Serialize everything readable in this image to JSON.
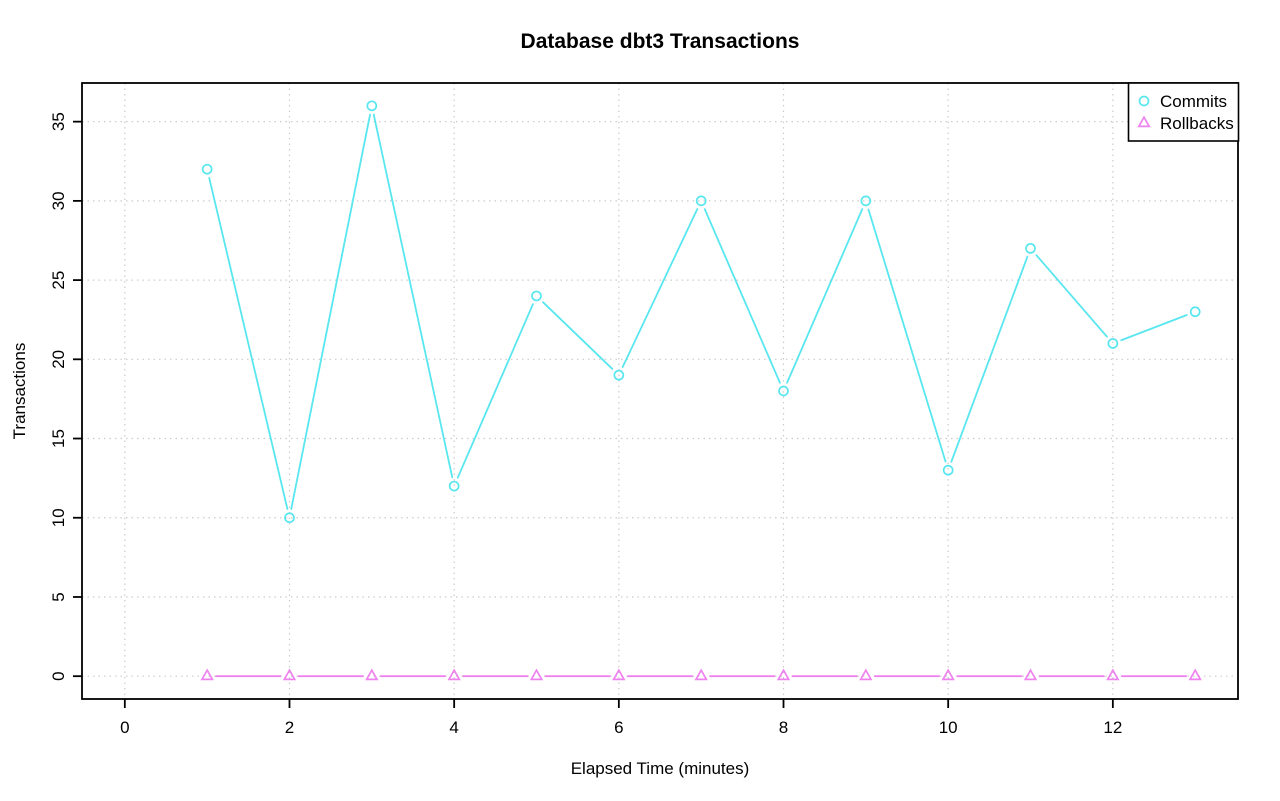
{
  "chart_data": {
    "type": "line",
    "title": "Database dbt3 Transactions",
    "xlabel": "Elapsed Time (minutes)",
    "ylabel": "Transactions",
    "x": [
      1,
      2,
      3,
      4,
      5,
      6,
      7,
      8,
      9,
      10,
      11,
      12,
      13
    ],
    "series": [
      {
        "name": "Commits",
        "marker": "circle",
        "color": "#58E6EF",
        "values": [
          32,
          10,
          36,
          12,
          24,
          19,
          30,
          18,
          30,
          13,
          27,
          21,
          23
        ]
      },
      {
        "name": "Rollbacks",
        "marker": "triangle",
        "color": "#EE82EE",
        "values": [
          0,
          0,
          0,
          0,
          0,
          0,
          0,
          0,
          0,
          0,
          0,
          0,
          0
        ]
      }
    ],
    "xticks": [
      0,
      2,
      4,
      6,
      8,
      10,
      12
    ],
    "yticks": [
      0,
      5,
      10,
      15,
      20,
      25,
      30,
      35
    ],
    "xlim": [
      -0.52,
      13.52
    ],
    "ylim": [
      -1.44,
      37.44
    ],
    "grid": true,
    "grid_color": "#CCCCCC",
    "frame_color": "#000000",
    "background": "#FFFFFF",
    "legend_position": "top-right",
    "line_style": "points-with-segments"
  }
}
